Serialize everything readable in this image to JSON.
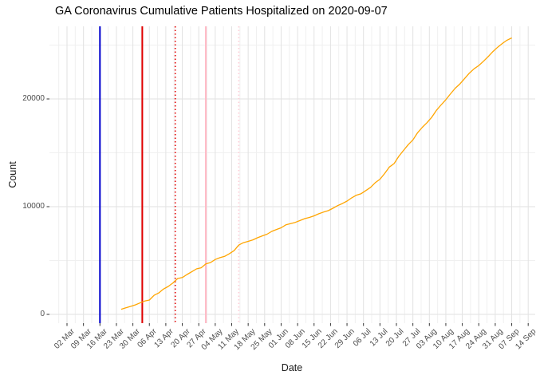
{
  "title": "GA Coronavirus Cumulative Patients Hospitalized on 2020-09-07",
  "chart_data": {
    "type": "line",
    "title": "GA Coronavirus Cumulative Patients Hospitalized on 2020-09-07",
    "xlabel": "Date",
    "ylabel": "Count",
    "grid": true,
    "legend": "none",
    "line_color": "#FFA500",
    "x_start_date": "2020-03-02",
    "x_tick_interval_days": 7,
    "x_tick_labels": [
      "02 Mar",
      "09 Mar",
      "16 Mar",
      "23 Mar",
      "30 Mar",
      "06 Apr",
      "13 Apr",
      "20 Apr",
      "27 Apr",
      "04 May",
      "11 May",
      "18 May",
      "25 May",
      "01 Jun",
      "08 Jun",
      "15 Jun",
      "22 Jun",
      "29 Jun",
      "06 Jul",
      "13 Jul",
      "20 Jul",
      "27 Jul",
      "03 Aug",
      "10 Aug",
      "17 Aug",
      "24 Aug",
      "31 Aug",
      "07 Sep",
      "14 Sep"
    ],
    "y_ticks": [
      0,
      10000,
      20000
    ],
    "y_tick_labels": [
      "0",
      "10000",
      "20000"
    ],
    "y_minor_ticks": [
      5000,
      15000,
      25000
    ],
    "ylim": [
      -800,
      26750
    ],
    "vlines": [
      {
        "name": "navy-solid-event-line",
        "date": "2020-03-16",
        "color": "#0000CD",
        "style": "solid",
        "width": 2
      },
      {
        "name": "red-solid-event-line",
        "date": "2020-04-03",
        "color": "#E10000",
        "style": "solid",
        "width": 2
      },
      {
        "name": "red-dotted-event-line",
        "date": "2020-04-17",
        "color": "#E10000",
        "style": "dotted",
        "width": 1.6
      },
      {
        "name": "pink-solid-event-line",
        "date": "2020-04-30",
        "color": "#FFB9C5",
        "style": "solid",
        "width": 2
      },
      {
        "name": "pink-dotted-event-line",
        "date": "2020-05-14",
        "color": "#FFCCD6",
        "style": "dotted",
        "width": 1.6
      }
    ],
    "series": [
      {
        "name": "cumulative-hospitalized",
        "points": [
          [
            "2020-03-25",
            473
          ],
          [
            "2020-03-27",
            617
          ],
          [
            "2020-03-29",
            741
          ],
          [
            "2020-03-31",
            879
          ],
          [
            "2020-04-02",
            1056
          ],
          [
            "2020-04-04",
            1239
          ],
          [
            "2020-04-06",
            1332
          ],
          [
            "2020-04-08",
            1774
          ],
          [
            "2020-04-10",
            1993
          ],
          [
            "2020-04-12",
            2351
          ],
          [
            "2020-04-14",
            2589
          ],
          [
            "2020-04-16",
            2922
          ],
          [
            "2020-04-18",
            3324
          ],
          [
            "2020-04-20",
            3420
          ],
          [
            "2020-04-22",
            3703
          ],
          [
            "2020-04-24",
            3959
          ],
          [
            "2020-04-26",
            4221
          ],
          [
            "2020-04-28",
            4326
          ],
          [
            "2020-04-30",
            4681
          ],
          [
            "2020-05-02",
            4814
          ],
          [
            "2020-05-04",
            5093
          ],
          [
            "2020-05-06",
            5269
          ],
          [
            "2020-05-08",
            5387
          ],
          [
            "2020-05-10",
            5634
          ],
          [
            "2020-05-12",
            5916
          ],
          [
            "2020-05-14",
            6438
          ],
          [
            "2020-05-16",
            6662
          ],
          [
            "2020-05-18",
            6779
          ],
          [
            "2020-05-20",
            6916
          ],
          [
            "2020-05-22",
            7116
          ],
          [
            "2020-05-24",
            7287
          ],
          [
            "2020-05-26",
            7442
          ],
          [
            "2020-05-28",
            7703
          ],
          [
            "2020-05-30",
            7883
          ],
          [
            "2020-06-01",
            8040
          ],
          [
            "2020-06-03",
            8311
          ],
          [
            "2020-06-05",
            8419
          ],
          [
            "2020-06-07",
            8538
          ],
          [
            "2020-06-09",
            8710
          ],
          [
            "2020-06-11",
            8886
          ],
          [
            "2020-06-13",
            9000
          ],
          [
            "2020-06-15",
            9145
          ],
          [
            "2020-06-17",
            9340
          ],
          [
            "2020-06-19",
            9499
          ],
          [
            "2020-06-21",
            9626
          ],
          [
            "2020-06-23",
            9849
          ],
          [
            "2020-06-25",
            10093
          ],
          [
            "2020-06-27",
            10289
          ],
          [
            "2020-06-29",
            10515
          ],
          [
            "2020-07-01",
            10824
          ],
          [
            "2020-07-03",
            11069
          ],
          [
            "2020-07-05",
            11211
          ],
          [
            "2020-07-07",
            11500
          ],
          [
            "2020-07-09",
            11789
          ],
          [
            "2020-07-11",
            12226
          ],
          [
            "2020-07-13",
            12550
          ],
          [
            "2020-07-15",
            13082
          ],
          [
            "2020-07-17",
            13685
          ],
          [
            "2020-07-19",
            14000
          ],
          [
            "2020-07-21",
            14673
          ],
          [
            "2020-07-23",
            15220
          ],
          [
            "2020-07-25",
            15759
          ],
          [
            "2020-07-27",
            16200
          ],
          [
            "2020-07-29",
            16858
          ],
          [
            "2020-07-31",
            17367
          ],
          [
            "2020-08-02",
            17800
          ],
          [
            "2020-08-04",
            18303
          ],
          [
            "2020-08-06",
            18946
          ],
          [
            "2020-08-08",
            19445
          ],
          [
            "2020-08-10",
            19931
          ],
          [
            "2020-08-12",
            20480
          ],
          [
            "2020-08-14",
            21000
          ],
          [
            "2020-08-16",
            21400
          ],
          [
            "2020-08-18",
            21897
          ],
          [
            "2020-08-20",
            22400
          ],
          [
            "2020-08-22",
            22800
          ],
          [
            "2020-08-24",
            23100
          ],
          [
            "2020-08-26",
            23500
          ],
          [
            "2020-08-28",
            23932
          ],
          [
            "2020-08-30",
            24400
          ],
          [
            "2020-09-01",
            24800
          ],
          [
            "2020-09-03",
            25150
          ],
          [
            "2020-09-05",
            25450
          ],
          [
            "2020-09-07",
            25666
          ]
        ]
      }
    ]
  }
}
